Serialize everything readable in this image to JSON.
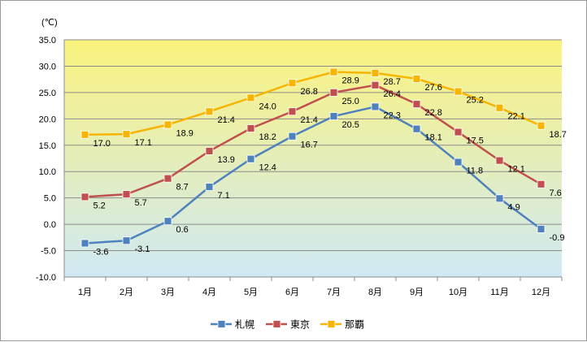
{
  "chart_data": {
    "type": "line",
    "unit_label": "(℃)",
    "categories": [
      "1月",
      "2月",
      "3月",
      "4月",
      "5月",
      "6月",
      "7月",
      "8月",
      "9月",
      "10月",
      "11月",
      "12月"
    ],
    "ylim": [
      -10.0,
      35.0
    ],
    "y_ticks": [
      "35.0",
      "30.0",
      "25.0",
      "20.0",
      "15.0",
      "10.0",
      "5.0",
      "0.0",
      "-5.0",
      "-10.0"
    ],
    "grid": true,
    "legend_position": "bottom",
    "background_gradient": [
      "#fbf37e",
      "#cfe9f4"
    ],
    "series": [
      {
        "name": "札幌",
        "color": "#4f81bd",
        "values": [
          -3.6,
          -3.1,
          0.6,
          7.1,
          12.4,
          16.7,
          20.5,
          22.3,
          18.1,
          11.8,
          4.9,
          -0.9
        ]
      },
      {
        "name": "東京",
        "color": "#c0504d",
        "values": [
          5.2,
          5.7,
          8.7,
          13.9,
          18.2,
          21.4,
          25.0,
          26.4,
          22.8,
          17.5,
          12.1,
          7.6
        ]
      },
      {
        "name": "那覇",
        "color": "#f7b400",
        "values": [
          17.0,
          17.1,
          18.9,
          21.4,
          24.0,
          26.8,
          28.9,
          28.7,
          27.6,
          25.2,
          22.1,
          18.7
        ]
      }
    ]
  }
}
